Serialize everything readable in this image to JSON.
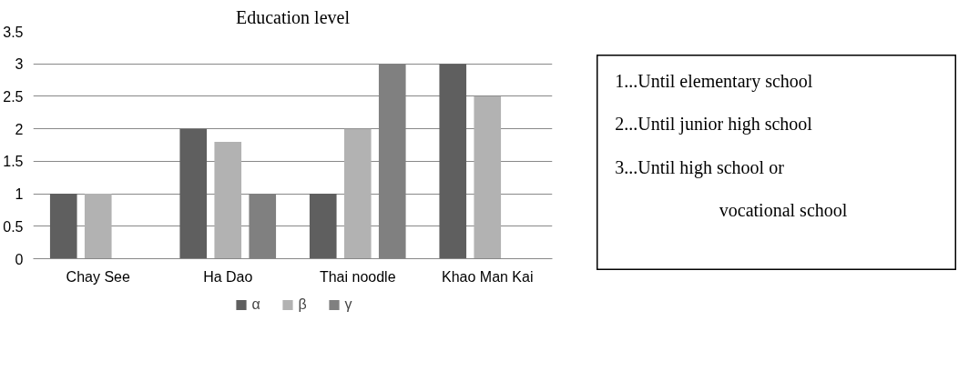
{
  "chart_data": [
    {
      "type": "bar",
      "title": "Education level",
      "categories": [
        "Chay See",
        "Ha Dao",
        "Thai noodle",
        "Khao Man Kai"
      ],
      "series": [
        {
          "name": "α",
          "color": "#5f5f5f",
          "values": [
            1,
            2,
            1,
            3
          ]
        },
        {
          "name": "β",
          "color": "#b2b2b2",
          "values": [
            1,
            1.8,
            2,
            2.5
          ]
        },
        {
          "name": "γ",
          "color": "#808080",
          "values": [
            null,
            1,
            3,
            null
          ]
        }
      ],
      "ylim": [
        0,
        3.5
      ],
      "yticks": [
        0,
        0.5,
        1,
        1.5,
        2,
        2.5,
        3,
        3.5
      ],
      "grid": "y",
      "legend": "bottom"
    },
    {
      "type": "other",
      "annotations": [
        "1...Until elementary school",
        "2...Until junior high school",
        "3...Until high school or vocational school"
      ]
    }
  ]
}
